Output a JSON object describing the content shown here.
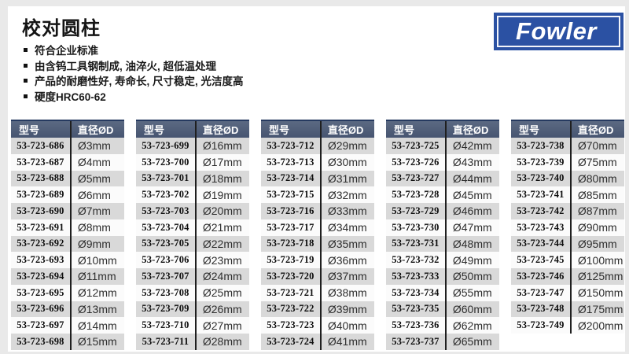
{
  "page": {
    "title": "校对圆柱",
    "bullets": [
      "符合企业标准",
      "由含钨工具钢制成, 油淬火, 超低温处理",
      "产品的耐磨性好, 寿命长, 尺寸稳定, 光洁度高",
      "硬度HRC60-62"
    ],
    "logo_text": "Fowler"
  },
  "colors": {
    "logo_blue": "#2b51a3",
    "table_header_top": "#5b6982",
    "table_header_bottom": "#475571",
    "row_gray": "#d9d9d9",
    "row_white": "#fbfbfb"
  },
  "tables": [
    {
      "headers": {
        "model": "型号",
        "diameter": "直径ØD"
      },
      "rows": [
        {
          "model": "53-723-686",
          "diameter": "Ø3mm"
        },
        {
          "model": "53-723-687",
          "diameter": "Ø4mm"
        },
        {
          "model": "53-723-688",
          "diameter": "Ø5mm"
        },
        {
          "model": "53-723-689",
          "diameter": "Ø6mm"
        },
        {
          "model": "53-723-690",
          "diameter": "Ø7mm"
        },
        {
          "model": "53-723-691",
          "diameter": "Ø8mm"
        },
        {
          "model": "53-723-692",
          "diameter": "Ø9mm"
        },
        {
          "model": "53-723-693",
          "diameter": "Ø10mm"
        },
        {
          "model": "53-723-694",
          "diameter": "Ø11mm"
        },
        {
          "model": "53-723-695",
          "diameter": "Ø12mm"
        },
        {
          "model": "53-723-696",
          "diameter": "Ø13mm"
        },
        {
          "model": "53-723-697",
          "diameter": "Ø14mm"
        },
        {
          "model": "53-723-698",
          "diameter": "Ø15mm"
        }
      ]
    },
    {
      "headers": {
        "model": "型号",
        "diameter": "直径ØD"
      },
      "rows": [
        {
          "model": "53-723-699",
          "diameter": "Ø16mm"
        },
        {
          "model": "53-723-700",
          "diameter": "Ø17mm"
        },
        {
          "model": "53-723-701",
          "diameter": "Ø18mm"
        },
        {
          "model": "53-723-702",
          "diameter": "Ø19mm"
        },
        {
          "model": "53-723-703",
          "diameter": "Ø20mm"
        },
        {
          "model": "53-723-704",
          "diameter": "Ø21mm"
        },
        {
          "model": "53-723-705",
          "diameter": "Ø22mm"
        },
        {
          "model": "53-723-706",
          "diameter": "Ø23mm"
        },
        {
          "model": "53-723-707",
          "diameter": "Ø24mm"
        },
        {
          "model": "53-723-708",
          "diameter": "Ø25mm"
        },
        {
          "model": "53-723-709",
          "diameter": "Ø26mm"
        },
        {
          "model": "53-723-710",
          "diameter": "Ø27mm"
        },
        {
          "model": "53-723-711",
          "diameter": "Ø28mm"
        }
      ]
    },
    {
      "headers": {
        "model": "型号",
        "diameter": "直径ØD"
      },
      "rows": [
        {
          "model": "53-723-712",
          "diameter": "Ø29mm"
        },
        {
          "model": "53-723-713",
          "diameter": "Ø30mm"
        },
        {
          "model": "53-723-714",
          "diameter": "Ø31mm"
        },
        {
          "model": "53-723-715",
          "diameter": "Ø32mm"
        },
        {
          "model": "53-723-716",
          "diameter": "Ø33mm"
        },
        {
          "model": "53-723-717",
          "diameter": "Ø34mm"
        },
        {
          "model": "53-723-718",
          "diameter": "Ø35mm"
        },
        {
          "model": "53-723-719",
          "diameter": "Ø36mm"
        },
        {
          "model": "53-723-720",
          "diameter": "Ø37mm"
        },
        {
          "model": "53-723-721",
          "diameter": "Ø38mm"
        },
        {
          "model": "53-723-722",
          "diameter": "Ø39mm"
        },
        {
          "model": "53-723-723",
          "diameter": "Ø40mm"
        },
        {
          "model": "53-723-724",
          "diameter": "Ø41mm"
        }
      ]
    },
    {
      "headers": {
        "model": "型号",
        "diameter": "直径ØD"
      },
      "rows": [
        {
          "model": "53-723-725",
          "diameter": "Ø42mm"
        },
        {
          "model": "53-723-726",
          "diameter": "Ø43mm"
        },
        {
          "model": "53-723-727",
          "diameter": "Ø44mm"
        },
        {
          "model": "53-723-728",
          "diameter": "Ø45mm"
        },
        {
          "model": "53-723-729",
          "diameter": "Ø46mm"
        },
        {
          "model": "53-723-730",
          "diameter": "Ø47mm"
        },
        {
          "model": "53-723-731",
          "diameter": "Ø48mm"
        },
        {
          "model": "53-723-732",
          "diameter": "Ø49mm"
        },
        {
          "model": "53-723-733",
          "diameter": "Ø50mm"
        },
        {
          "model": "53-723-734",
          "diameter": "Ø55mm"
        },
        {
          "model": "53-723-735",
          "diameter": "Ø60mm"
        },
        {
          "model": "53-723-736",
          "diameter": "Ø62mm"
        },
        {
          "model": "53-723-737",
          "diameter": "Ø65mm"
        }
      ]
    },
    {
      "headers": {
        "model": "型号",
        "diameter": "直径ØD"
      },
      "rows": [
        {
          "model": "53-723-738",
          "diameter": "Ø70mm"
        },
        {
          "model": "53-723-739",
          "diameter": "Ø75mm"
        },
        {
          "model": "53-723-740",
          "diameter": "Ø80mm"
        },
        {
          "model": "53-723-741",
          "diameter": "Ø85mm"
        },
        {
          "model": "53-723-742",
          "diameter": "Ø87mm"
        },
        {
          "model": "53-723-743",
          "diameter": "Ø90mm"
        },
        {
          "model": "53-723-744",
          "diameter": "Ø95mm"
        },
        {
          "model": "53-723-745",
          "diameter": "Ø100mm"
        },
        {
          "model": "53-723-746",
          "diameter": "Ø125mm"
        },
        {
          "model": "53-723-747",
          "diameter": "Ø150mm"
        },
        {
          "model": "53-723-748",
          "diameter": "Ø175mm"
        },
        {
          "model": "53-723-749",
          "diameter": "Ø200mm"
        }
      ]
    }
  ]
}
